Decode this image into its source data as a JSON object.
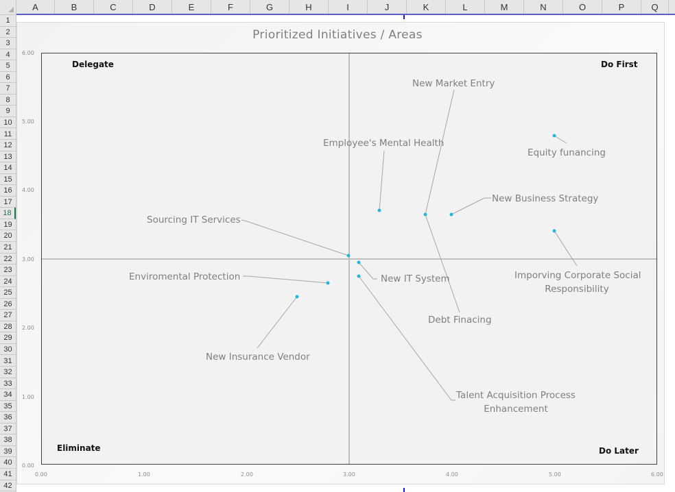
{
  "spreadsheet": {
    "columns": [
      "A",
      "B",
      "C",
      "D",
      "E",
      "F",
      "G",
      "H",
      "I",
      "J",
      "K",
      "L",
      "M",
      "N",
      "O",
      "P",
      "Q"
    ],
    "rows": [
      "1",
      "2",
      "3",
      "4",
      "5",
      "6",
      "7",
      "8",
      "9",
      "10",
      "11",
      "12",
      "13",
      "14",
      "15",
      "16",
      "17",
      "18",
      "19",
      "20",
      "21",
      "22",
      "23",
      "24",
      "25",
      "26",
      "27",
      "28",
      "29",
      "30",
      "31",
      "32",
      "33",
      "34",
      "35",
      "36",
      "37",
      "38",
      "39",
      "40",
      "41",
      "42"
    ],
    "active_row": "18"
  },
  "chart_data": {
    "type": "scatter",
    "title": "Prioritized Initiatives / Areas",
    "xlabel": "",
    "ylabel": "",
    "xlim": [
      0,
      6
    ],
    "ylim": [
      0,
      6
    ],
    "x_ticks": [
      "0.00",
      "1.00",
      "2.00",
      "3.00",
      "4.00",
      "5.00",
      "6.00"
    ],
    "y_ticks": [
      "0.00",
      "1.00",
      "2.00",
      "3.00",
      "4.00",
      "5.00",
      "6.00"
    ],
    "grid": false,
    "divider_lines": {
      "x": 3.0,
      "y": 3.0
    },
    "quadrants": {
      "top_left": "Delegate",
      "top_right": "Do First",
      "bottom_left": "Eliminate",
      "bottom_right": "Do Later"
    },
    "point_color": "#29b6d6",
    "points": [
      {
        "label": "Equity funancing",
        "x": 5.0,
        "y": 4.8
      },
      {
        "label": "New Business Strategy",
        "x": 4.0,
        "y": 3.65
      },
      {
        "label": "New Market Entry",
        "x": 3.75,
        "y": 3.65
      },
      {
        "label": "Debt Finacing",
        "x": 3.75,
        "y": 3.65
      },
      {
        "label": "Employee's Mental Health",
        "x": 3.3,
        "y": 3.7
      },
      {
        "label": "Imporving Corporate Social Responsibility",
        "x": 5.0,
        "y": 3.4
      },
      {
        "label": "Sourcing IT Services",
        "x": 3.0,
        "y": 3.05
      },
      {
        "label": "New IT System",
        "x": 3.1,
        "y": 2.95
      },
      {
        "label": "Talent Acquisition Process Enhancement",
        "x": 3.1,
        "y": 2.75
      },
      {
        "label": "Enviromental Protection",
        "x": 2.8,
        "y": 2.65
      },
      {
        "label": "New Insurance Vendor",
        "x": 2.5,
        "y": 2.45
      }
    ]
  },
  "labels": {
    "equity": "Equity funancing",
    "business_strategy": "New Business Strategy",
    "market_entry": "New Market Entry",
    "debt": "Debt Finacing",
    "mental_health": "Employee's Mental Health",
    "csr_line1": "Imporving Corporate Social",
    "csr_line2": "Responsibility",
    "sourcing_it": "Sourcing IT Services",
    "it_system": "New IT System",
    "talent_line1": "Talent Acquisition Process",
    "talent_line2": "Enhancement",
    "enviro": "Enviromental Protection",
    "insurance": "New Insurance Vendor"
  }
}
